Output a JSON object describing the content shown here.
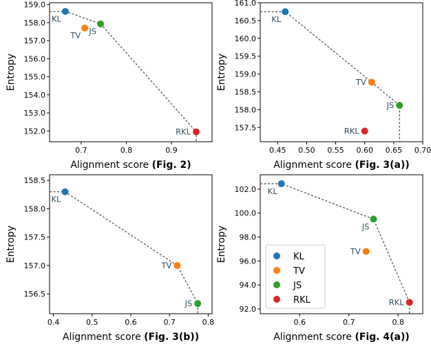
{
  "colors": {
    "KL": "#1f77b4",
    "TV": "#ff7f0e",
    "JS": "#2ca02c",
    "RKL": "#d62728",
    "frontier": "#555555"
  },
  "legend": {
    "placement": "inside-left of panel 4",
    "items": [
      {
        "name": "KL",
        "color": "#1f77b4"
      },
      {
        "name": "TV",
        "color": "#ff7f0e"
      },
      {
        "name": "JS",
        "color": "#2ca02c"
      },
      {
        "name": "RKL",
        "color": "#d62728"
      }
    ]
  },
  "chart_data": [
    {
      "type": "scatter",
      "xlabel": "Alignment score ",
      "xlabel_bold": "(Fig. 2)",
      "ylabel": "Entropy",
      "xlim": [
        0.63,
        0.99
      ],
      "ylim": [
        151.4,
        159.1
      ],
      "xticks": [
        0.7,
        0.8,
        0.9
      ],
      "xticklabels": [
        "0.7",
        "0.8",
        "0.9"
      ],
      "yticks": [
        152,
        153,
        154,
        155,
        156,
        157,
        158,
        159
      ],
      "yticklabels": [
        "152.0",
        "153.0",
        "154.0",
        "155.0",
        "156.0",
        "157.0",
        "158.0",
        "159.0"
      ],
      "points": [
        {
          "name": "KL",
          "x": 0.665,
          "y": 158.62,
          "color": "#1f77b4",
          "label": "KL",
          "lpos": "below-left"
        },
        {
          "name": "TV",
          "x": 0.708,
          "y": 157.7,
          "color": "#ff7f0e",
          "label": "TV",
          "lpos": "below-left"
        },
        {
          "name": "JS",
          "x": 0.743,
          "y": 157.93,
          "color": "#2ca02c",
          "label": "JS",
          "lpos": "below-left"
        },
        {
          "name": "RKL",
          "x": 0.955,
          "y": 151.95,
          "color": "#d62728",
          "label": "RKL",
          "lpos": "left"
        }
      ],
      "frontier": [
        [
          0.665,
          158.62
        ],
        [
          0.743,
          157.93
        ],
        [
          0.955,
          151.95
        ]
      ]
    },
    {
      "type": "scatter",
      "xlabel": "Alignment score ",
      "xlabel_bold": "(Fig. 3(a))",
      "ylabel": "Entropy",
      "xlim": [
        0.42,
        0.7
      ],
      "ylim": [
        157.1,
        161.0
      ],
      "xticks": [
        0.45,
        0.5,
        0.55,
        0.6,
        0.65,
        0.7
      ],
      "xticklabels": [
        "0.45",
        "0.50",
        "0.55",
        "0.60",
        "0.65",
        "0.70"
      ],
      "yticks": [
        157.5,
        158,
        158.5,
        159,
        159.5,
        160,
        160.5,
        161
      ],
      "yticklabels": [
        "157.5",
        "158.0",
        "158.5",
        "159.0",
        "159.5",
        "160.0",
        "160.5",
        "161.0"
      ],
      "points": [
        {
          "name": "KL",
          "x": 0.463,
          "y": 160.75,
          "color": "#1f77b4",
          "label": "KL",
          "lpos": "below-left"
        },
        {
          "name": "TV",
          "x": 0.612,
          "y": 158.77,
          "color": "#ff7f0e",
          "label": "TV",
          "lpos": "left"
        },
        {
          "name": "JS",
          "x": 0.66,
          "y": 158.12,
          "color": "#2ca02c",
          "label": "JS",
          "lpos": "left"
        },
        {
          "name": "RKL",
          "x": 0.6,
          "y": 157.4,
          "color": "#d62728",
          "label": "RKL",
          "lpos": "left"
        }
      ],
      "frontier": [
        [
          0.463,
          160.75
        ],
        [
          0.612,
          158.77
        ],
        [
          0.66,
          158.12
        ]
      ]
    },
    {
      "type": "scatter",
      "xlabel": "Alignment score ",
      "xlabel_bold": "(Fig. 3(b))",
      "ylabel": "Entropy",
      "xlim": [
        0.39,
        0.81
      ],
      "ylim": [
        156.15,
        158.6
      ],
      "xticks": [
        0.4,
        0.5,
        0.6,
        0.7,
        0.8
      ],
      "xticklabels": [
        "0.4",
        "0.5",
        "0.6",
        "0.7",
        "0.8"
      ],
      "yticks": [
        156.5,
        157,
        157.5,
        158,
        158.5
      ],
      "yticklabels": [
        "156.5",
        "157.0",
        "157.5",
        "158.0",
        "158.5"
      ],
      "points": [
        {
          "name": "KL",
          "x": 0.43,
          "y": 158.3,
          "color": "#1f77b4",
          "label": "KL",
          "lpos": "below-left"
        },
        {
          "name": "TV",
          "x": 0.72,
          "y": 157.0,
          "color": "#ff7f0e",
          "label": "TV",
          "lpos": "left"
        },
        {
          "name": "JS",
          "x": 0.773,
          "y": 156.33,
          "color": "#2ca02c",
          "label": "JS",
          "lpos": "left"
        }
      ],
      "frontier": [
        [
          0.43,
          158.3
        ],
        [
          0.72,
          157.0
        ],
        [
          0.773,
          156.33
        ]
      ]
    },
    {
      "type": "scatter",
      "xlabel": "Alignment score ",
      "xlabel_bold": "(Fig. 4(a))",
      "ylabel": "Entropy",
      "xlim": [
        0.52,
        0.85
      ],
      "ylim": [
        91.6,
        103.2
      ],
      "xticks": [
        0.6,
        0.7,
        0.8
      ],
      "xticklabels": [
        "0.6",
        "0.7",
        "0.8"
      ],
      "yticks": [
        92,
        94,
        96,
        98,
        100,
        102
      ],
      "yticklabels": [
        "92.0",
        "94.0",
        "96.0",
        "98.0",
        "100.0",
        "102.0"
      ],
      "points": [
        {
          "name": "KL",
          "x": 0.563,
          "y": 102.45,
          "color": "#1f77b4",
          "label": "KL",
          "lpos": "below-left"
        },
        {
          "name": "TV",
          "x": 0.735,
          "y": 96.8,
          "color": "#ff7f0e",
          "label": "TV",
          "lpos": "left"
        },
        {
          "name": "JS",
          "x": 0.75,
          "y": 99.5,
          "color": "#2ca02c",
          "label": "JS",
          "lpos": "below-left"
        },
        {
          "name": "RKL",
          "x": 0.823,
          "y": 92.55,
          "color": "#d62728",
          "label": "RKL",
          "lpos": "left"
        }
      ],
      "frontier": [
        [
          0.563,
          102.45
        ],
        [
          0.75,
          99.5
        ],
        [
          0.823,
          92.55
        ]
      ]
    }
  ]
}
